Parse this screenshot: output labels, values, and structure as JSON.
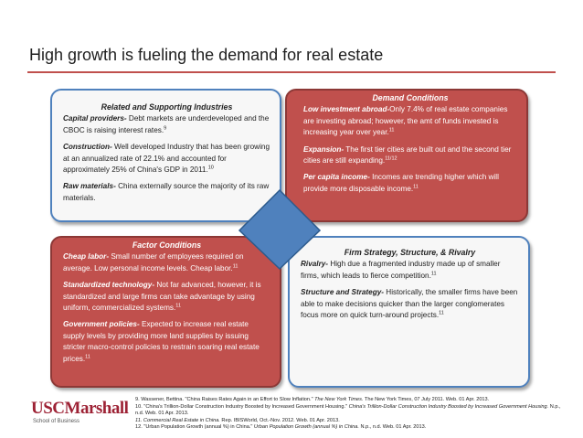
{
  "title": "High growth is fueling the demand for real estate",
  "boxes": [
    {
      "heading": "Related and Supporting Industries",
      "items": [
        {
          "lead": "Capital providers-",
          "text": " Debt markets are underdeveloped and the CBOC is raising interest rates.",
          "sup": "9"
        },
        {
          "lead": "Construction-",
          "text": " Well developed Industry that has been growing at an annualized rate of 22.1% and accounted for approximately 25% of China's GDP in 2011.",
          "sup": "10"
        },
        {
          "lead": "Raw materials-",
          "text": " China externally source the majority of its raw materials."
        }
      ]
    },
    {
      "heading": "Demand Conditions",
      "items": [
        {
          "lead": "Low investment abroad-",
          "text": "Only 7.4% of real estate companies are investing abroad; however, the amt of funds invested is increasing year over year.",
          "sup": "11"
        },
        {
          "lead": "Expansion-",
          "text": " The first tier cities are built out and the second tier cities are still expanding.",
          "sup": "11/12"
        },
        {
          "lead": "Per capita income-",
          "text": " Incomes are trending higher which will provide more disposable income.",
          "sup": "11"
        }
      ]
    },
    {
      "heading": "Factor Conditions",
      "items": [
        {
          "lead": "Cheap labor-",
          "text": " Small number of employees required on average. Low personal income levels. Cheap labor.",
          "sup": "11"
        },
        {
          "lead": "Standardized technology-",
          "text": " Not far advanced, however, it is standardized and large firms can take advantage by using uniform, commercialized systems.",
          "sup": "11"
        },
        {
          "lead": "Government policies-",
          "text": " Expected to increase real estate supply levels by providing more land supplies by issuing stricter macro-control policies to restrain soaring real estate prices.",
          "sup": "11"
        }
      ]
    },
    {
      "heading": "Firm Strategy, Structure, & Rivalry",
      "items": [
        {
          "lead": "Rivalry-",
          "text": " High due a fragmented industry made up of smaller firms, which leads to fierce competition.",
          "sup": "11"
        },
        {
          "lead": "Structure and Strategy-",
          "text": " Historically, the smaller firms have been able to make decisions quicker than the larger conglomerates focus more on quick turn-around projects.",
          "sup": "11"
        }
      ]
    }
  ],
  "logo": {
    "usc": "USC",
    "marshall": "Marshall",
    "school": "School of Business"
  },
  "footnotes": [
    [
      {
        "text": "9. Wassener, Bettina. \"China Raises Rates Again in an Effort to Slow Inflation.\" "
      },
      {
        "text": "The New York Times",
        "italic": true
      },
      {
        "text": ". The New York Times, 07 July 2011. Web. 01 Apr. 2013."
      }
    ],
    [
      {
        "text": "10. \"China's Trillion-Dollar Construction Industry Boosted by Increased Government Housing.\" "
      },
      {
        "text": "China's Trillion-Dollar Construction Industry Boosted by Increased Government Housing.",
        "italic": true
      },
      {
        "text": " N.p., n.d. Web. 01 Apr. 2013."
      }
    ],
    [
      {
        "text": "11. Commercial Real Estate in China.",
        "italic": true
      },
      {
        "text": " Rep. IBISWorld, Oct.-Nov. 2012. Web. 01 Apr. 2013."
      }
    ],
    [
      {
        "text": "12. \"Urban Population Growth (annual %) in China.\" "
      },
      {
        "text": "Urban Population Growth (annual %) in China.",
        "italic": true
      },
      {
        "text": " N.p., n.d. Web. 01 Apr. 2013."
      }
    ]
  ]
}
